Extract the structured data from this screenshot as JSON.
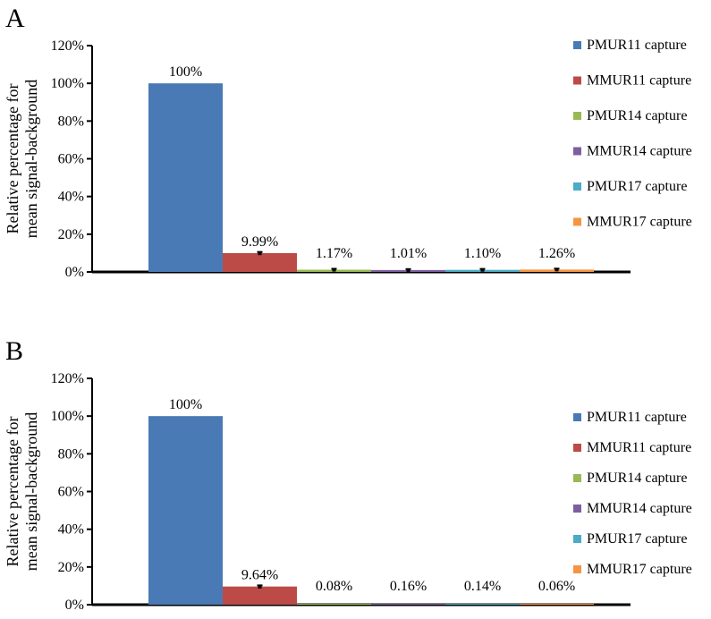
{
  "chart_data": [
    {
      "panel_label": "A",
      "type": "bar",
      "categories": [
        "PMUR11 capture",
        "MMUR11 capture",
        "PMUR14 capture",
        "MMUR14 capture",
        "PMUR17 capture",
        "MMUR17 capture"
      ],
      "values": [
        100,
        9.99,
        1.17,
        1.01,
        1.1,
        1.26
      ],
      "data_labels": [
        "100%",
        "9.99%",
        "1.17%",
        "1.01%",
        "1.10%",
        "1.26%"
      ],
      "error_bars": [
        0,
        0.6,
        0.5,
        0.5,
        0.5,
        0.5
      ],
      "colors": [
        "#4a7ab5",
        "#bc4b47",
        "#98b954",
        "#7d5fa0",
        "#4aacc5",
        "#f59542"
      ],
      "ylabel_line1": "Relative percentage for",
      "ylabel_line2": "mean signal-background",
      "ylim": [
        0,
        120
      ],
      "yticks": [
        "0%",
        "20%",
        "40%",
        "60%",
        "80%",
        "100%",
        "120%"
      ],
      "legend_position": "right",
      "grid": false
    },
    {
      "panel_label": "B",
      "type": "bar",
      "categories": [
        "PMUR11 capture",
        "MMUR11 capture",
        "PMUR14 capture",
        "MMUR14 capture",
        "PMUR17 capture",
        "MMUR17 capture"
      ],
      "values": [
        100,
        9.64,
        0.08,
        0.16,
        0.14,
        0.06
      ],
      "data_labels": [
        "100%",
        "9.64%",
        "0.08%",
        "0.16%",
        "0.14%",
        "0.06%"
      ],
      "error_bars": [
        0,
        0.6,
        0,
        0,
        0,
        0
      ],
      "colors": [
        "#4a7ab5",
        "#bc4b47",
        "#98b954",
        "#7d5fa0",
        "#4aacc5",
        "#f59542"
      ],
      "ylabel_line1": "Relative percentage for",
      "ylabel_line2": "mean signal-background",
      "ylim": [
        0,
        120
      ],
      "yticks": [
        "0%",
        "20%",
        "40%",
        "60%",
        "80%",
        "100%",
        "120%"
      ],
      "legend_position": "right",
      "grid": false
    }
  ]
}
